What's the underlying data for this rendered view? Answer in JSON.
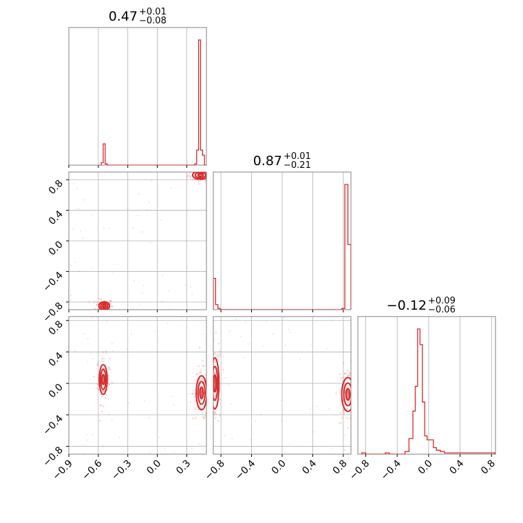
{
  "chart_data": {
    "type": "corner",
    "color": "#d62728",
    "grid": true,
    "parameters": [
      {
        "median": "0.47",
        "plus": "+0.01",
        "minus": "−0.08",
        "range": [
          -0.9,
          0.5
        ],
        "ticks": [
          -0.9,
          -0.6,
          -0.3,
          0.0,
          0.3
        ],
        "tick_labels": [
          "−0.9",
          "−0.6",
          "−0.3",
          "0.0",
          "0.3"
        ]
      },
      {
        "median": "0.87",
        "plus": "+0.01",
        "minus": "−0.21",
        "range": [
          -0.9,
          0.9
        ],
        "ticks": [
          -0.8,
          -0.4,
          0.0,
          0.4,
          0.8
        ],
        "tick_labels": [
          "−0.8",
          "−0.4",
          "0.0",
          "0.4",
          "0.8"
        ]
      },
      {
        "median": "−0.12",
        "plus": "+0.09",
        "minus": "−0.06",
        "range": [
          -0.9,
          0.85
        ],
        "ticks": [
          -0.8,
          -0.4,
          0.0,
          0.4,
          0.8
        ],
        "tick_labels": [
          "−0.8",
          "−0.4",
          "0.0",
          "0.4",
          "0.8"
        ]
      }
    ],
    "histograms": [
      {
        "param": 0,
        "edges": [
          -0.57,
          -0.55,
          -0.53,
          -0.51,
          -0.49,
          0.38,
          0.4,
          0.42,
          0.44,
          0.46,
          0.48,
          0.5
        ],
        "counts": [
          0.02,
          0.17,
          0.01,
          0.0,
          0.0,
          0.01,
          0.12,
          1.0,
          0.12,
          0.08,
          0.0
        ]
      },
      {
        "param": 1,
        "edges": [
          -0.9,
          -0.87,
          -0.84,
          -0.81,
          0.7,
          0.78,
          0.82,
          0.86,
          0.9
        ],
        "counts": [
          0.25,
          0.04,
          0.01,
          0.0,
          0.0,
          0.01,
          1.0,
          0.52
        ]
      },
      {
        "param": 2,
        "edges": [
          -0.85,
          -0.8,
          -0.55,
          -0.5,
          -0.45,
          -0.35,
          -0.3,
          -0.25,
          -0.2,
          -0.17,
          -0.14,
          -0.11,
          -0.08,
          -0.05,
          -0.02,
          0.02,
          0.06,
          0.1,
          0.15,
          0.2,
          0.4,
          0.8,
          0.84
        ],
        "counts": [
          0.01,
          0.0,
          0.01,
          0.0,
          0.0,
          0.0,
          0.02,
          0.12,
          0.33,
          0.52,
          0.96,
          0.84,
          0.4,
          0.14,
          0.11,
          0.11,
          0.05,
          0.03,
          0.02,
          0.01,
          0.01,
          0.01
        ]
      }
    ],
    "joint_modes": [
      {
        "x": 0,
        "y": 1,
        "modes": [
          {
            "cx": 0.44,
            "cy": 0.86,
            "sx": 0.03,
            "sy": 0.02
          },
          {
            "cx": -0.54,
            "cy": -0.85,
            "sx": 0.02,
            "sy": 0.02
          }
        ]
      },
      {
        "x": 0,
        "y": 2,
        "modes": [
          {
            "cx": -0.55,
            "cy": 0.05,
            "sx": 0.015,
            "sy": 0.07
          },
          {
            "cx": 0.45,
            "cy": -0.12,
            "sx": 0.02,
            "sy": 0.08
          }
        ]
      },
      {
        "x": 1,
        "y": 2,
        "modes": [
          {
            "cx": -0.88,
            "cy": 0.0,
            "sx": 0.02,
            "sy": 0.12
          },
          {
            "cx": 0.86,
            "cy": -0.14,
            "sx": 0.03,
            "sy": 0.08
          }
        ]
      }
    ]
  }
}
